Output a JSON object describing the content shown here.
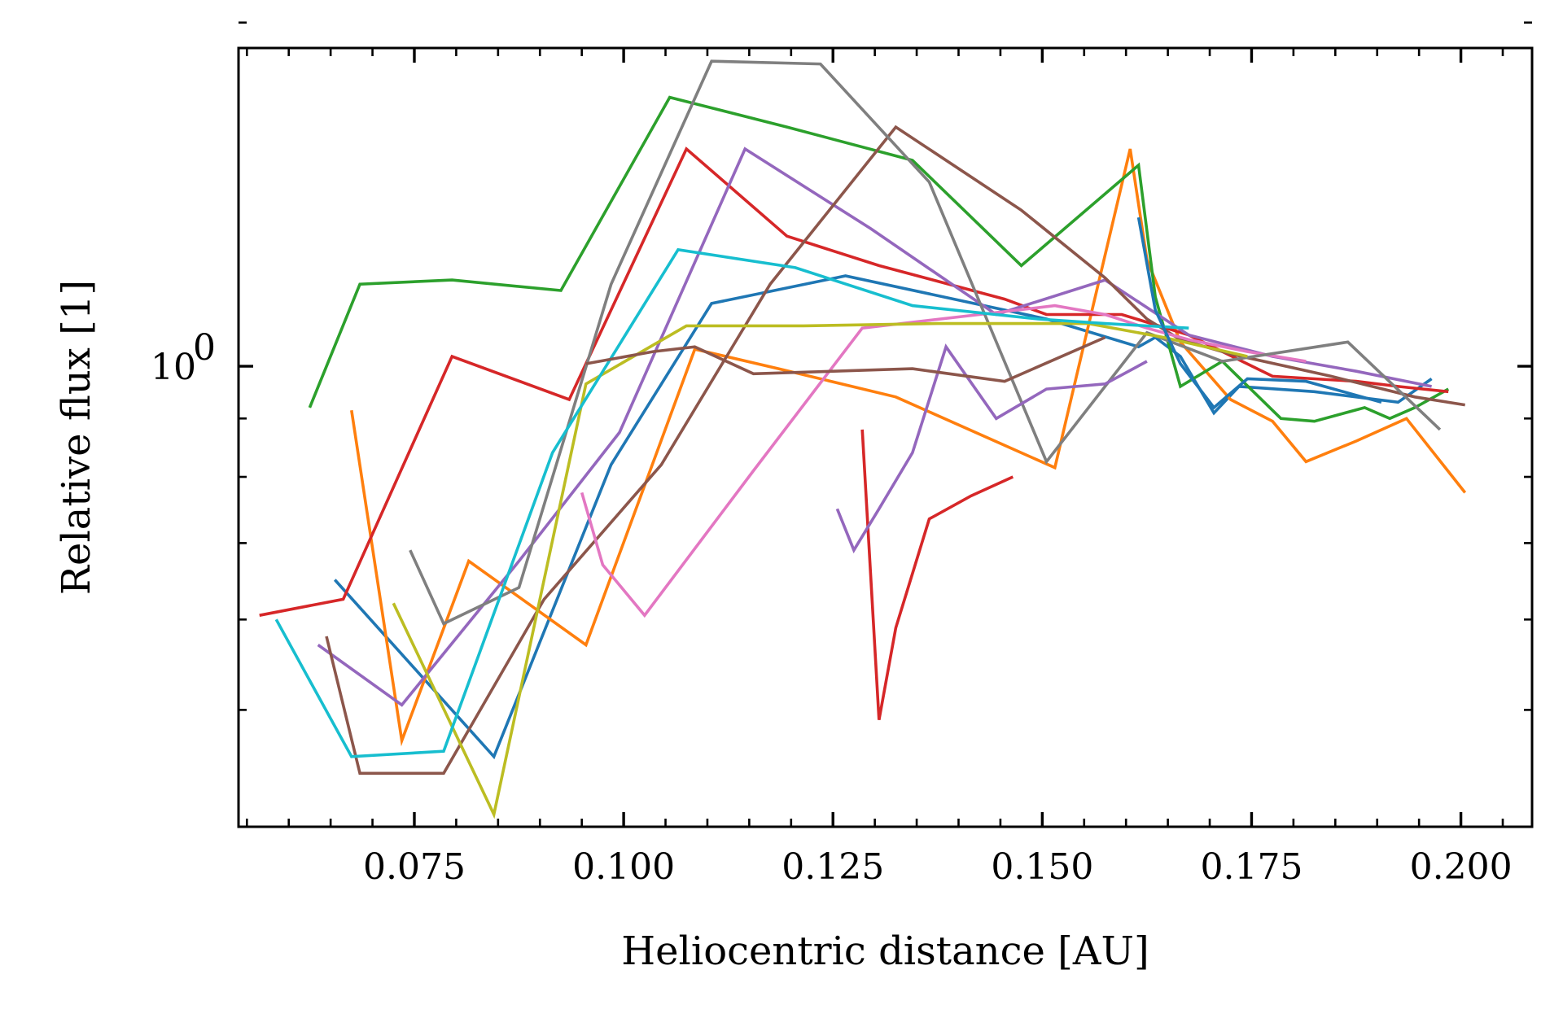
{
  "chart_data": {
    "type": "line",
    "title": "",
    "xlabel": "Heliocentric distance [AU]",
    "ylabel": "Relative flux [1]",
    "xlim": [
      0.054,
      0.2085
    ],
    "ylim": [
      0.395,
      1.9
    ],
    "yscale": "log",
    "grid": false,
    "legend": "none",
    "x_ticks": [
      0.075,
      0.1,
      0.125,
      0.15,
      0.175,
      0.2
    ],
    "x_tick_labels": [
      "0.075",
      "0.100",
      "0.125",
      "0.150",
      "0.175",
      "0.200"
    ],
    "y_ticks": [
      1.0
    ],
    "y_tick_labels": [
      {
        "base": "10",
        "exp": "0"
      }
    ],
    "y_minor_ticks": [
      0.5,
      0.6,
      0.7,
      0.8,
      0.9,
      2.0
    ],
    "series": [
      {
        "color": "#1f77b4",
        "x": [
          0.0655,
          0.0845,
          0.0985,
          0.1105,
          0.1265,
          0.1505,
          0.1615,
          0.1635,
          0.1665,
          0.1705,
          0.1735,
          0.1825,
          0.1925,
          0.1965
        ],
        "y": [
          0.65,
          0.455,
          0.82,
          1.135,
          1.2,
          1.1,
          1.04,
          1.06,
          1.02,
          0.91,
          0.96,
          0.95,
          0.93,
          0.975
        ]
      },
      {
        "color": "#ff7f0e",
        "x": [
          0.0675,
          0.0735,
          0.0815,
          0.0955,
          0.1085,
          0.1185,
          0.1325,
          0.1515,
          0.1605,
          0.1625,
          0.1665,
          0.1725,
          0.1775,
          0.1815,
          0.1875,
          0.1935,
          0.2005
        ],
        "y": [
          0.915,
          0.47,
          0.675,
          0.57,
          1.035,
          0.995,
          0.94,
          0.815,
          1.55,
          1.24,
          1.05,
          0.935,
          0.895,
          0.825,
          0.86,
          0.9,
          0.775
        ]
      },
      {
        "color": "#2ca02c",
        "x": [
          0.0625,
          0.0685,
          0.0795,
          0.0925,
          0.1055,
          0.1195,
          0.1345,
          0.1475,
          0.1615,
          0.1635,
          0.1665,
          0.1715,
          0.1785,
          0.1825,
          0.1885,
          0.1915,
          0.1945,
          0.1985
        ],
        "y": [
          0.92,
          1.18,
          1.19,
          1.165,
          1.72,
          1.62,
          1.515,
          1.225,
          1.5,
          1.15,
          0.96,
          1.01,
          0.9,
          0.895,
          0.92,
          0.9,
          0.92,
          0.955
        ]
      },
      {
        "color": "#d62728",
        "x": [
          0.0565,
          0.0665,
          0.0795,
          0.0935,
          0.1075,
          0.1195,
          0.1305,
          0.1455,
          0.1505,
          0.1595,
          0.1675,
          0.1775,
          0.1875,
          0.1925,
          0.1985
        ],
        "y": [
          0.605,
          0.625,
          1.02,
          0.935,
          1.55,
          1.3,
          1.225,
          1.145,
          1.11,
          1.11,
          1.065,
          0.98,
          0.97,
          0.96,
          0.95
        ]
      },
      {
        "color": "#9467bd",
        "x": [
          0.0635,
          0.0735,
          0.0875,
          0.0995,
          0.1145,
          0.1295,
          0.1445,
          0.1575,
          0.1675,
          0.1775,
          0.1875,
          0.1965
        ],
        "y": [
          0.57,
          0.505,
          0.675,
          0.875,
          1.55,
          1.32,
          1.11,
          1.19,
          1.065,
          1.02,
          0.99,
          0.96
        ]
      },
      {
        "color": "#8c564b",
        "x": [
          0.0645,
          0.0685,
          0.0785,
          0.0905,
          0.1045,
          0.1175,
          0.1325,
          0.1475,
          0.1575,
          0.1625,
          0.1665,
          0.1725,
          0.1845,
          0.1945,
          0.2005
        ],
        "y": [
          0.58,
          0.44,
          0.44,
          0.625,
          0.82,
          1.18,
          1.62,
          1.37,
          1.195,
          1.1,
          1.055,
          1.025,
          0.98,
          0.94,
          0.925
        ]
      },
      {
        "color": "#e377c2",
        "x": [
          0.095,
          0.0975,
          0.1025,
          0.1155,
          0.1285,
          0.1425,
          0.1515,
          0.1575,
          0.1625,
          0.1675,
          0.1745,
          0.1815
        ],
        "y": [
          0.775,
          0.67,
          0.605,
          0.81,
          1.08,
          1.11,
          1.13,
          1.11,
          1.08,
          1.055,
          1.03,
          1.01
        ]
      },
      {
        "color": "#7f7f7f",
        "x": [
          0.0745,
          0.0785,
          0.0875,
          0.0985,
          0.1105,
          0.1235,
          0.1365,
          0.1505,
          0.1625,
          0.1715,
          0.1865,
          0.1975
        ],
        "y": [
          0.69,
          0.595,
          0.64,
          1.18,
          1.85,
          1.84,
          1.45,
          0.825,
          1.07,
          1.01,
          1.05,
          0.88
        ]
      },
      {
        "color": "#bcbd22",
        "x": [
          0.0725,
          0.0845,
          0.0955,
          0.1075,
          0.1215,
          0.1375,
          0.1555,
          0.1645,
          0.1745
        ],
        "y": [
          0.62,
          0.405,
          0.965,
          1.085,
          1.085,
          1.09,
          1.09,
          1.06,
          1.02
        ]
      },
      {
        "color": "#17becf",
        "x": [
          0.0585,
          0.0675,
          0.0785,
          0.0915,
          0.1065,
          0.1205,
          0.1345,
          0.1495,
          0.1575,
          0.1675
        ],
        "y": [
          0.6,
          0.455,
          0.46,
          0.84,
          1.265,
          1.22,
          1.13,
          1.1,
          1.09,
          1.08
        ]
      },
      {
        "color": "#d62728",
        "x": [
          0.1285,
          0.1305,
          0.1325,
          0.1365,
          0.1415,
          0.1465
        ],
        "y": [
          0.88,
          0.49,
          0.59,
          0.735,
          0.77,
          0.8
        ]
      },
      {
        "color": "#9467bd",
        "x": [
          0.1255,
          0.1275,
          0.1305,
          0.1345,
          0.1385,
          0.1445,
          0.1505,
          0.1575,
          0.1625
        ],
        "y": [
          0.75,
          0.69,
          0.75,
          0.84,
          1.04,
          0.9,
          0.955,
          0.965,
          1.01
        ]
      },
      {
        "color": "#8c564b",
        "x": [
          0.0955,
          0.1035,
          0.1085,
          0.1155,
          0.1345,
          0.1455,
          0.1575
        ],
        "y": [
          1.005,
          1.03,
          1.04,
          0.985,
          0.995,
          0.97,
          1.06
        ]
      },
      {
        "color": "#1f77b4",
        "x": [
          0.1615,
          0.1635,
          0.1665,
          0.1705,
          0.1745,
          0.1815,
          0.1905
        ],
        "y": [
          1.35,
          1.12,
          1.005,
          0.92,
          0.975,
          0.97,
          0.93
        ]
      }
    ]
  }
}
